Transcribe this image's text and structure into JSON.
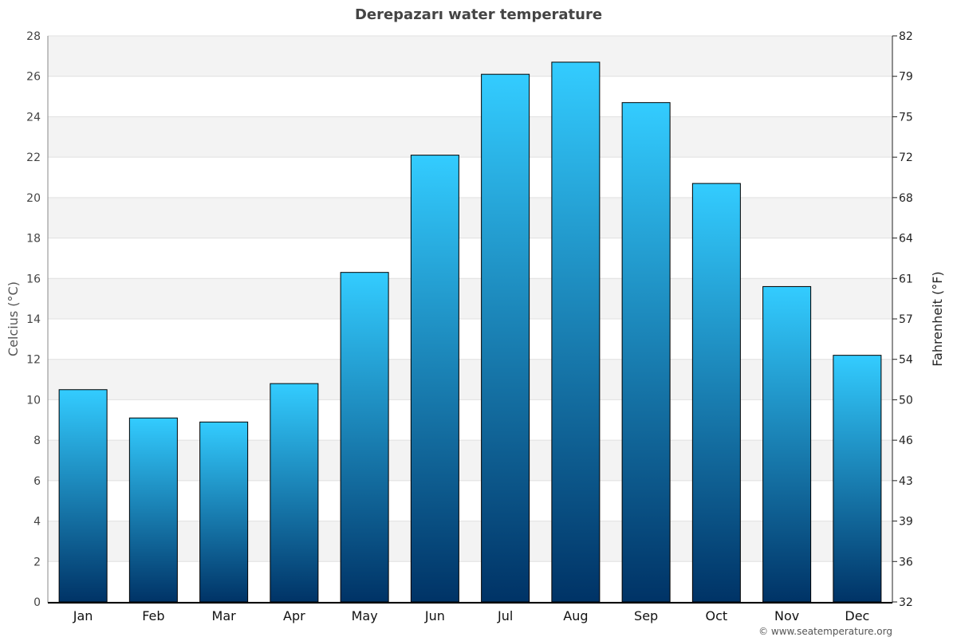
{
  "chart_data": {
    "type": "bar",
    "title": "Derepazarı water temperature",
    "ylabel": "Celcius (°C)",
    "ylabel_right": "Fahrenheit (°F)",
    "categories": [
      "Jan",
      "Feb",
      "Mar",
      "Apr",
      "May",
      "Jun",
      "Jul",
      "Aug",
      "Sep",
      "Oct",
      "Nov",
      "Dec"
    ],
    "values": [
      10.5,
      9.1,
      8.9,
      10.8,
      16.3,
      22.1,
      26.1,
      26.7,
      24.7,
      20.7,
      15.6,
      12.2
    ],
    "ylim": [
      0,
      28
    ],
    "yticks": [
      0,
      2,
      4,
      6,
      8,
      10,
      12,
      14,
      16,
      18,
      20,
      22,
      24,
      26,
      28
    ],
    "yticks_right": [
      "32",
      "36",
      "39",
      "43",
      "46",
      "50",
      "54",
      "57",
      "61",
      "64",
      "68",
      "72",
      "75",
      "79",
      "82"
    ],
    "grid": true,
    "bar_gradient": {
      "top": "#33ccff",
      "bottom": "#003366"
    },
    "band_color": "#f3f3f3",
    "credit": "© www.seatemperature.org"
  }
}
